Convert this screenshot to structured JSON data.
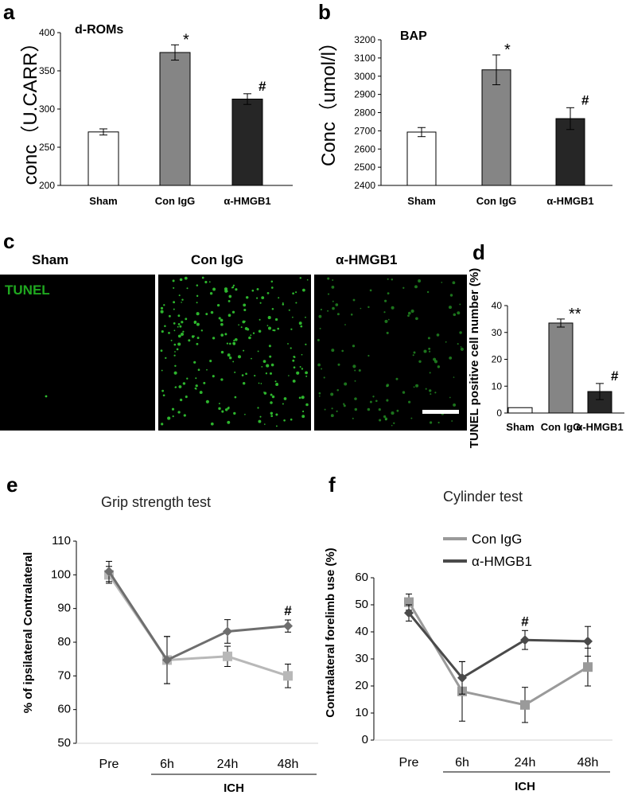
{
  "panel_labels": {
    "a": "a",
    "b": "b",
    "c": "c",
    "d": "d",
    "e": "e",
    "f": "f"
  },
  "groups": {
    "sham": "Sham",
    "con": "Con IgG",
    "hmgb1": "α-HMGB1"
  },
  "chart_data": [
    {
      "id": "a",
      "type": "bar",
      "title": "d-ROMs",
      "ylabel": "conc（U.CARR）",
      "categories": [
        "Sham",
        "Con IgG",
        "α-HMGB1"
      ],
      "values": [
        270,
        374,
        313
      ],
      "errors": [
        4,
        10,
        7
      ],
      "ylim": [
        200,
        400
      ],
      "yticks": [
        "200",
        "250",
        "300",
        "350",
        "400"
      ],
      "annotations": [
        "",
        "*",
        "#"
      ],
      "colors": [
        "#ffffff",
        "#858585",
        "#262626"
      ]
    },
    {
      "id": "b",
      "type": "bar",
      "title": "BAP",
      "ylabel": "Conc（umol/l）",
      "categories": [
        "Sham",
        "Con IgG",
        "α-HMGB1"
      ],
      "values": [
        2693,
        3035,
        2767
      ],
      "errors": [
        25,
        82,
        60
      ],
      "ylim": [
        2400,
        3200
      ],
      "yticks": [
        "2400",
        "2500",
        "2600",
        "2700",
        "2800",
        "2900",
        "3000",
        "3100",
        "3200"
      ],
      "annotations": [
        "",
        "*",
        "#"
      ],
      "colors": [
        "#ffffff",
        "#858585",
        "#262626"
      ]
    },
    {
      "id": "d",
      "type": "bar",
      "title": "",
      "ylabel": "TUNEL positive cell number (%)",
      "categories": [
        "Sham",
        "Con IgG",
        "α-HMGB1"
      ],
      "values": [
        2,
        33.5,
        8
      ],
      "errors": [
        0,
        1.5,
        3
      ],
      "ylim": [
        0,
        40
      ],
      "yticks": [
        "0",
        "10",
        "20",
        "30",
        "40"
      ],
      "annotations": [
        "",
        "**",
        "#"
      ],
      "colors": [
        "#ffffff",
        "#858585",
        "#262626"
      ]
    },
    {
      "id": "e",
      "type": "line",
      "title": "Grip strength test",
      "ylabel": "% of ipsilateral Contralateral",
      "categories": [
        "Pre",
        "6h",
        "24h",
        "48h"
      ],
      "xgroup": "ICH",
      "ylim": [
        50,
        110
      ],
      "yticks": [
        "50",
        "60",
        "70",
        "80",
        "90",
        "100",
        "110"
      ],
      "series": [
        {
          "values": [
            100,
            74.7,
            75.8,
            70
          ],
          "errors": [
            2.5,
            7,
            3,
            3.5
          ],
          "color": "#b8b8b8",
          "marker": "square"
        },
        {
          "values": [
            101,
            74.7,
            83.2,
            84.8
          ],
          "errors": [
            3,
            7,
            3.5,
            1.8
          ],
          "color": "#6e6e6e",
          "marker": "diamond"
        }
      ],
      "annotations": [
        {
          "index": 3,
          "text": "#"
        }
      ]
    },
    {
      "id": "f",
      "type": "line",
      "title": "Cylinder test",
      "ylabel": "Contralateral forelimb use (%)",
      "categories": [
        "Pre",
        "6h",
        "24h",
        "48h"
      ],
      "xgroup": "ICH",
      "ylim": [
        0,
        60
      ],
      "yticks": [
        "0",
        "10",
        "20",
        "30",
        "40",
        "50",
        "60"
      ],
      "series": [
        {
          "name": "Con IgG",
          "values": [
            51,
            18,
            13,
            27
          ],
          "errors": [
            3,
            11,
            6.5,
            7
          ],
          "color": "#9a9a9a",
          "marker": "square"
        },
        {
          "name": "α-HMGB1",
          "values": [
            47,
            23,
            37,
            36.5
          ],
          "errors": [
            3,
            6,
            3.5,
            5.5
          ],
          "color": "#4a4a4a",
          "marker": "diamond"
        }
      ],
      "annotations": [
        {
          "index": 2,
          "text": "#"
        }
      ]
    }
  ],
  "micrographs": {
    "tunel_label": "TUNEL",
    "titles": [
      "Sham",
      "Con IgG",
      "α-HMGB1"
    ],
    "dot_color": "#2fbf2f"
  }
}
